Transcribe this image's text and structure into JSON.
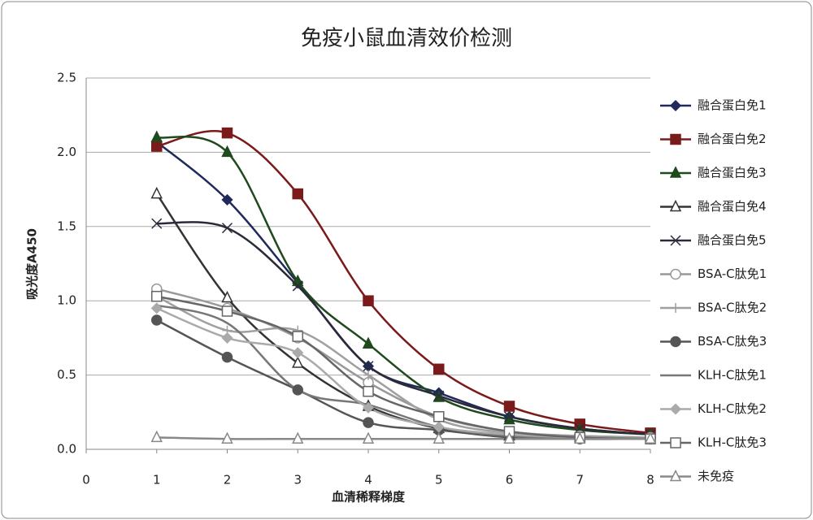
{
  "chart_data": {
    "type": "line",
    "title": "免疫小鼠血清效价检测",
    "x_label": "血清稀释梯度",
    "y_label": "吸光度A450",
    "x": [
      1,
      2,
      3,
      4,
      5,
      6,
      7,
      8
    ],
    "xlim": [
      0,
      8
    ],
    "xticks": [
      0,
      1,
      2,
      3,
      4,
      5,
      6,
      7,
      8
    ],
    "ylim": [
      0,
      2.5
    ],
    "yticks": [
      {
        "value": 0,
        "label": "0.0"
      },
      0.5,
      {
        "value": 1,
        "label": "1.0"
      },
      1.5,
      {
        "value": 2,
        "label": "2.0"
      },
      2.5
    ],
    "grid": true,
    "smooth": true,
    "legend": "right",
    "series": [
      {
        "name": "融合蛋白免1",
        "color": "#1f2a5a",
        "marker": "diamond",
        "values": [
          2.07,
          1.68,
          1.12,
          0.56,
          0.38,
          0.22,
          0.14,
          0.1
        ]
      },
      {
        "name": "融合蛋白免2",
        "color": "#7a1a1a",
        "marker": "square",
        "values": [
          2.04,
          2.13,
          1.72,
          1.0,
          0.54,
          0.29,
          0.17,
          0.11
        ]
      },
      {
        "name": "融合蛋白免3",
        "color": "#1e4a1e",
        "marker": "triangle",
        "values": [
          2.1,
          2.0,
          1.13,
          0.71,
          0.35,
          0.2,
          0.13,
          0.1
        ]
      },
      {
        "name": "融合蛋白免4",
        "color": "#333333",
        "marker": "triangle-open",
        "values": [
          1.72,
          1.02,
          0.58,
          0.29,
          0.14,
          0.09,
          0.08,
          0.07
        ]
      },
      {
        "name": "融合蛋白免5",
        "color": "#2a2a3a",
        "marker": "x",
        "values": [
          1.52,
          1.49,
          1.1,
          0.56,
          0.36,
          0.22,
          0.14,
          0.1
        ]
      },
      {
        "name": "BSA-C肽免1",
        "color": "#999999",
        "marker": "circle-open",
        "values": [
          1.08,
          0.95,
          0.75,
          0.45,
          0.22,
          0.12,
          0.09,
          0.08
        ]
      },
      {
        "name": "BSA-C肽免2",
        "color": "#a0a0a0",
        "marker": "plus",
        "values": [
          1.03,
          0.8,
          0.8,
          0.5,
          0.2,
          0.11,
          0.09,
          0.08
        ]
      },
      {
        "name": "BSA-C肽免3",
        "color": "#555555",
        "marker": "circle",
        "values": [
          0.87,
          0.62,
          0.4,
          0.18,
          0.13,
          0.08,
          0.07,
          0.07
        ]
      },
      {
        "name": "KLH-C肽免1",
        "color": "#777777",
        "marker": "none",
        "values": [
          0.97,
          0.85,
          0.4,
          0.3,
          0.15,
          0.09,
          0.08,
          0.07
        ]
      },
      {
        "name": "KLH-C肽免2",
        "color": "#aaaaaa",
        "marker": "diamond",
        "values": [
          0.95,
          0.75,
          0.65,
          0.28,
          0.15,
          0.1,
          0.08,
          0.07
        ]
      },
      {
        "name": "KLH-C肽免3",
        "color": "#666666",
        "marker": "square-open",
        "values": [
          1.03,
          0.93,
          0.76,
          0.39,
          0.22,
          0.12,
          0.08,
          0.07
        ]
      },
      {
        "name": "未免疫",
        "color": "#888888",
        "marker": "triangle-open",
        "values": [
          0.08,
          0.07,
          0.07,
          0.07,
          0.07,
          0.07,
          0.07,
          0.07
        ]
      }
    ]
  }
}
